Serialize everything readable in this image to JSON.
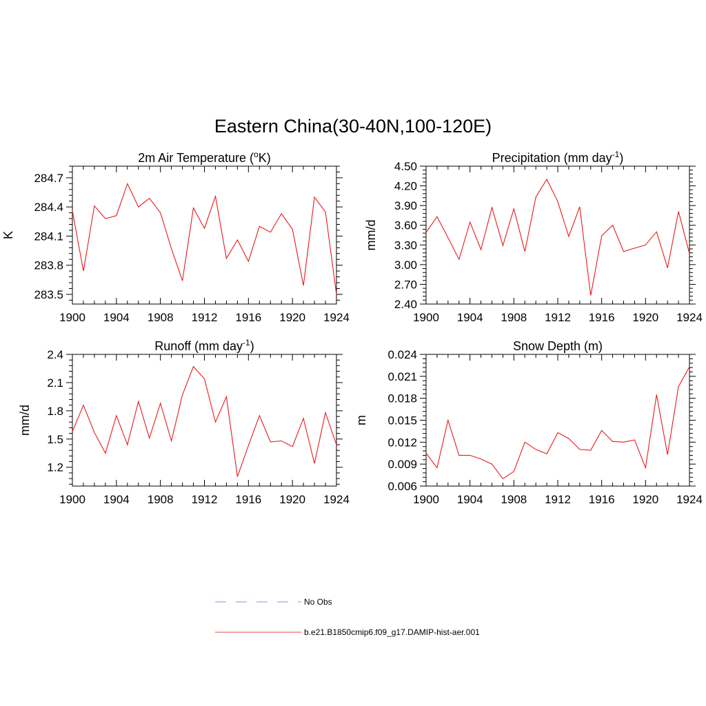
{
  "title": "Eastern China(30-40N,100-120E)",
  "chart_data": [
    {
      "type": "line",
      "title": "2m Air Temperature (",
      "title_sup": "o",
      "title_after": "K)",
      "ylabel": "K",
      "x": [
        1900,
        1901,
        1902,
        1903,
        1904,
        1905,
        1906,
        1907,
        1908,
        1909,
        1910,
        1911,
        1912,
        1913,
        1914,
        1915,
        1916,
        1917,
        1918,
        1919,
        1920,
        1921,
        1922,
        1923,
        1924
      ],
      "xlim": [
        1900,
        1924
      ],
      "xticks": [
        1900,
        1904,
        1908,
        1912,
        1916,
        1920,
        1924
      ],
      "ylim": [
        283.4,
        284.82
      ],
      "yticks": [
        "283.5",
        "283.8",
        "284.1",
        "284.4",
        "284.7"
      ],
      "series": [
        {
          "values": [
            284.36,
            283.74,
            284.41,
            284.28,
            284.31,
            284.64,
            284.4,
            284.49,
            284.34,
            283.97,
            283.64,
            284.39,
            284.18,
            284.51,
            283.87,
            284.06,
            283.84,
            284.2,
            284.14,
            284.33,
            284.17,
            283.59,
            284.5,
            284.35,
            283.5
          ],
          "color": "#e8191b"
        }
      ]
    },
    {
      "type": "line",
      "title": "Precipitation (mm day",
      "title_sup": "-1",
      "title_after": ")",
      "ylabel": "mm/d",
      "x": [
        1900,
        1901,
        1902,
        1903,
        1904,
        1905,
        1906,
        1907,
        1908,
        1909,
        1910,
        1911,
        1912,
        1913,
        1914,
        1915,
        1916,
        1917,
        1918,
        1919,
        1920,
        1921,
        1922,
        1923,
        1924
      ],
      "xlim": [
        1900,
        1924
      ],
      "xticks": [
        1900,
        1904,
        1908,
        1912,
        1916,
        1920,
        1924
      ],
      "ylim": [
        2.4,
        4.5
      ],
      "yticks": [
        "2.40",
        "2.70",
        "3.00",
        "3.30",
        "3.60",
        "3.90",
        "4.20",
        "4.50"
      ],
      "series": [
        {
          "values": [
            3.49,
            3.73,
            3.41,
            3.08,
            3.65,
            3.23,
            3.87,
            3.29,
            3.85,
            3.2,
            4.03,
            4.3,
            3.96,
            3.43,
            3.88,
            2.53,
            3.44,
            3.6,
            3.2,
            3.25,
            3.3,
            3.5,
            2.95,
            3.81,
            3.17
          ],
          "color": "#e8191b"
        }
      ]
    },
    {
      "type": "line",
      "title": "Runoff (mm day",
      "title_sup": "-1",
      "title_after": ")",
      "ylabel": "mm/d",
      "x": [
        1900,
        1901,
        1902,
        1903,
        1904,
        1905,
        1906,
        1907,
        1908,
        1909,
        1910,
        1911,
        1912,
        1913,
        1914,
        1915,
        1916,
        1917,
        1918,
        1919,
        1920,
        1921,
        1922,
        1923,
        1924
      ],
      "xlim": [
        1900,
        1924
      ],
      "xticks": [
        1900,
        1904,
        1908,
        1912,
        1916,
        1920,
        1924
      ],
      "ylim": [
        1.0,
        2.4
      ],
      "yticks": [
        "1.2",
        "1.5",
        "1.8",
        "2.1",
        "2.4"
      ],
      "series": [
        {
          "values": [
            1.58,
            1.86,
            1.57,
            1.35,
            1.75,
            1.44,
            1.9,
            1.51,
            1.88,
            1.48,
            1.97,
            2.27,
            2.14,
            1.68,
            1.95,
            1.1,
            1.43,
            1.75,
            1.47,
            1.48,
            1.42,
            1.72,
            1.24,
            1.78,
            1.44
          ],
          "color": "#e8191b"
        }
      ]
    },
    {
      "type": "line",
      "title": "Snow Depth (m)",
      "title_sup": "",
      "title_after": "",
      "ylabel": "m",
      "x": [
        1900,
        1901,
        1902,
        1903,
        1904,
        1905,
        1906,
        1907,
        1908,
        1909,
        1910,
        1911,
        1912,
        1913,
        1914,
        1915,
        1916,
        1917,
        1918,
        1919,
        1920,
        1921,
        1922,
        1923,
        1924
      ],
      "xlim": [
        1900,
        1924
      ],
      "xticks": [
        1900,
        1904,
        1908,
        1912,
        1916,
        1920,
        1924
      ],
      "ylim": [
        0.006,
        0.024
      ],
      "yticks": [
        "0.006",
        "0.009",
        "0.012",
        "0.015",
        "0.018",
        "0.021",
        "0.024"
      ],
      "series": [
        {
          "values": [
            0.0105,
            0.0085,
            0.015,
            0.0102,
            0.0102,
            0.0097,
            0.009,
            0.007,
            0.008,
            0.012,
            0.011,
            0.0104,
            0.0133,
            0.0125,
            0.011,
            0.0109,
            0.0136,
            0.0121,
            0.012,
            0.0123,
            0.0085,
            0.0185,
            0.0103,
            0.0196,
            0.0223
          ],
          "color": "#e8191b"
        }
      ]
    }
  ],
  "legend": [
    {
      "label": "No Obs",
      "style": "dashed",
      "color": "#9fa3ee"
    },
    {
      "label": "b.e21.B1850cmip6.f09_g17.DAMIP-hist-aer.001",
      "style": "solid",
      "color": "#f06a6a"
    }
  ]
}
